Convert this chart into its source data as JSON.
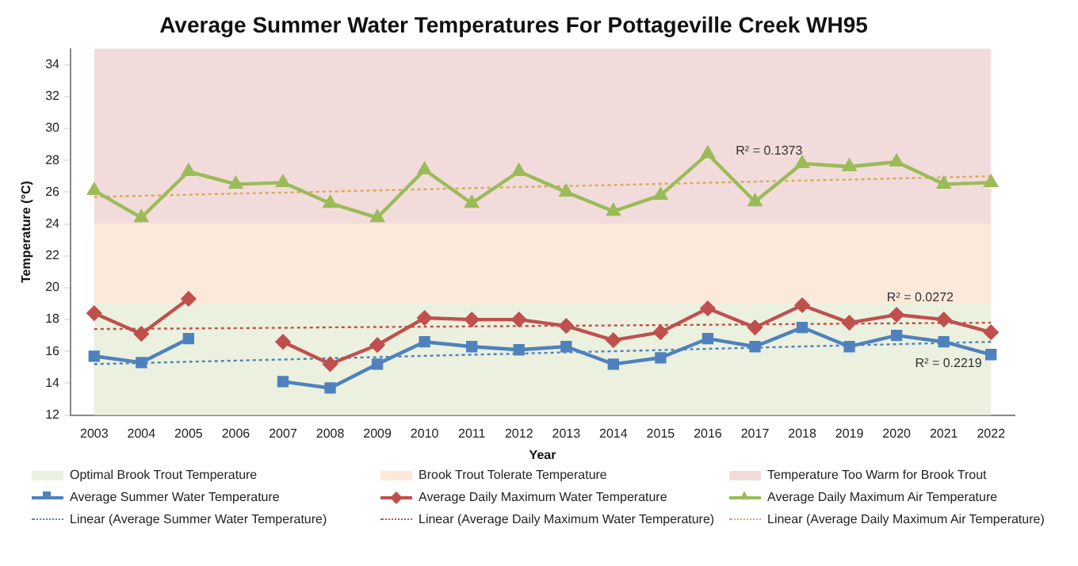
{
  "chart_data": {
    "type": "line",
    "title": "Average Summer Water Temperatures For Pottageville Creek WH95",
    "xlabel": "Year",
    "ylabel": "Temperature (°C)",
    "categories": [
      "2003",
      "2004",
      "2005",
      "2006",
      "2007",
      "2008",
      "2009",
      "2010",
      "2011",
      "2012",
      "2013",
      "2014",
      "2015",
      "2016",
      "2017",
      "2018",
      "2019",
      "2020",
      "2021",
      "2022"
    ],
    "ylim": [
      12,
      35
    ],
    "yticks": [
      12,
      14,
      16,
      18,
      20,
      22,
      24,
      26,
      28,
      30,
      32,
      34
    ],
    "legend": "bottom",
    "bands": [
      {
        "axis": "y",
        "from": 12,
        "to": 19,
        "label": "Optimal Brook Trout Temperature",
        "color": "#ebf1de"
      },
      {
        "axis": "y",
        "from": 19,
        "to": 24,
        "label": "Brook Trout Tolerate Temperature",
        "color": "#fde9d9"
      },
      {
        "axis": "y",
        "from": 24,
        "to": 35,
        "label": "Temperature Too Warm for Brook Trout",
        "color": "#f2dcdb"
      }
    ],
    "series": [
      {
        "name": "Average Summer Water Temperature",
        "color": "#4f81bd",
        "marker": "square",
        "values": [
          15.7,
          15.3,
          16.8,
          null,
          14.1,
          13.7,
          15.2,
          16.6,
          16.3,
          16.1,
          16.3,
          15.2,
          15.6,
          16.8,
          16.3,
          17.5,
          16.3,
          17.0,
          16.6,
          15.8
        ]
      },
      {
        "name": "Average Daily Maximum Water Temperature",
        "color": "#c0504d",
        "marker": "diamond",
        "values": [
          18.4,
          17.1,
          19.3,
          null,
          16.6,
          15.2,
          16.4,
          18.1,
          18.0,
          18.0,
          17.6,
          16.7,
          17.2,
          18.7,
          17.5,
          18.9,
          17.8,
          18.3,
          18.0,
          17.2
        ]
      },
      {
        "name": "Average Daily Maximum Air Temperature",
        "color": "#9bbb59",
        "marker": "triangle",
        "values": [
          26.1,
          24.4,
          27.3,
          26.5,
          26.6,
          25.3,
          24.4,
          27.4,
          25.3,
          27.3,
          26.0,
          24.8,
          25.8,
          28.4,
          25.4,
          27.8,
          27.6,
          27.9,
          26.5,
          26.6
        ]
      },
      {
        "name": "Linear (Average Summer Water Temperature)",
        "color": "#4f81bd",
        "marker": "none",
        "line_style": "dotted",
        "values": [
          15.2,
          15.27,
          15.35,
          15.42,
          15.49,
          15.57,
          15.64,
          15.72,
          15.79,
          15.86,
          15.94,
          16.01,
          16.08,
          16.16,
          16.23,
          16.31,
          16.38,
          16.45,
          16.53,
          16.6
        ]
      },
      {
        "name": "Linear (Average Daily Maximum Water Temperature)",
        "color": "#c0504d",
        "marker": "none",
        "line_style": "dotted",
        "values": [
          17.4,
          17.42,
          17.44,
          17.46,
          17.48,
          17.51,
          17.53,
          17.55,
          17.57,
          17.59,
          17.61,
          17.63,
          17.65,
          17.67,
          17.69,
          17.72,
          17.74,
          17.76,
          17.78,
          17.8
        ]
      },
      {
        "name": "Linear (Average Daily Maximum Air Temperature)",
        "color": "#d9a95b",
        "marker": "none",
        "line_style": "dotted",
        "values": [
          25.7,
          25.77,
          25.84,
          25.91,
          25.97,
          26.04,
          26.11,
          26.18,
          26.25,
          26.32,
          26.38,
          26.45,
          26.52,
          26.59,
          26.66,
          26.73,
          26.79,
          26.86,
          26.93,
          27.0
        ]
      }
    ],
    "annotations": [
      "R² = 0.1373",
      "R² = 0.0272",
      "R² = 0.2219"
    ]
  }
}
